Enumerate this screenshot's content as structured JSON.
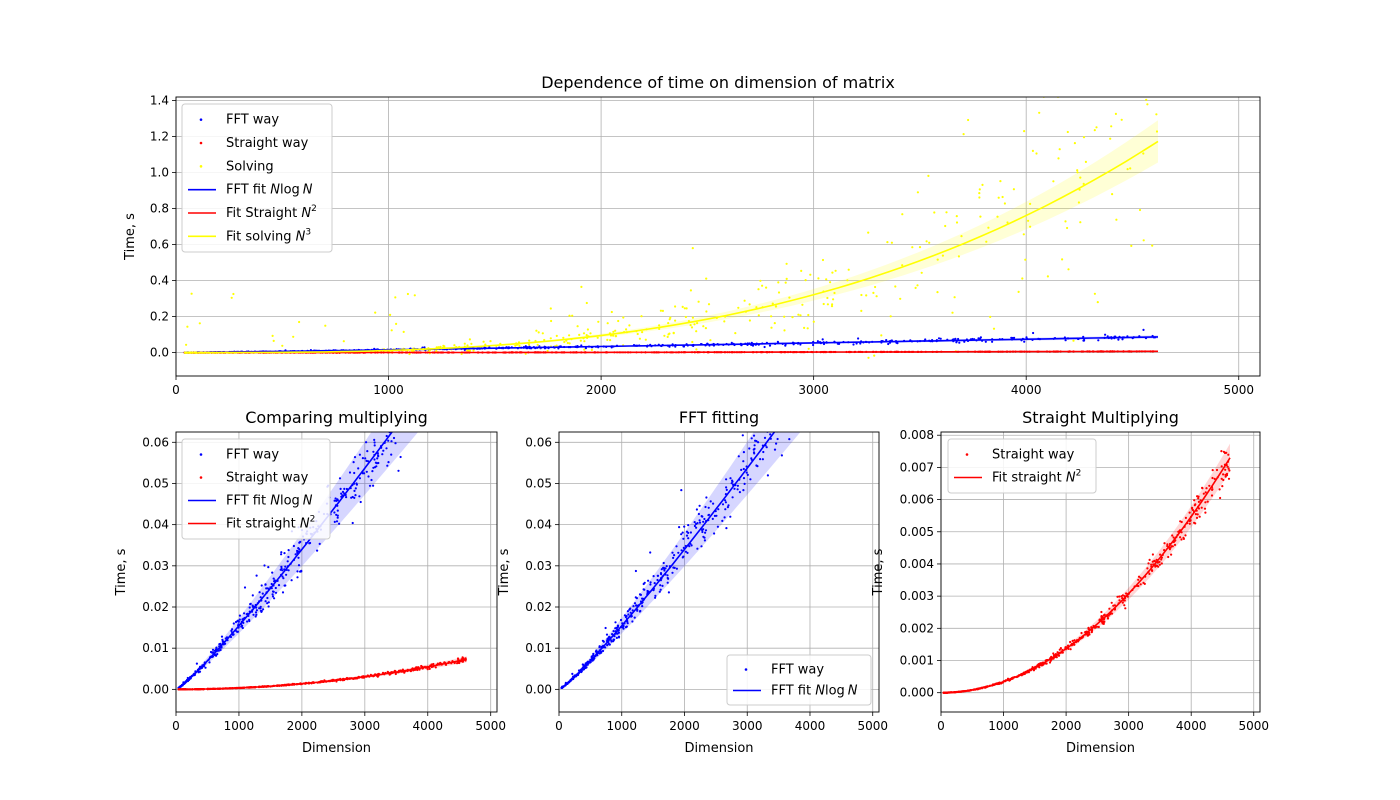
{
  "chart_data": [
    {
      "id": "top",
      "type": "scatter",
      "title": "Dependence of time on dimension of matrix",
      "xlabel": "",
      "ylabel": "Time, s",
      "xlim": [
        0,
        5100
      ],
      "ylim": [
        -0.13,
        1.42
      ],
      "xticks": [
        0,
        1000,
        2000,
        3000,
        4000,
        5000
      ],
      "yticks": [
        0.0,
        0.2,
        0.4,
        0.6,
        0.8,
        1.0,
        1.2,
        1.4
      ],
      "grid": true,
      "legend_placement": "upper-left",
      "series": [
        {
          "name": "FFT way",
          "kind": "scatter",
          "color": "#0000ff",
          "model": "nlogn",
          "coef": 1.55e-06,
          "max": 0.067,
          "noise": 0.09
        },
        {
          "name": "Straight way",
          "kind": "scatter",
          "color": "#ff0000",
          "model": "n2",
          "coef": 3.42e-10,
          "max": 0.0073,
          "noise": 0.05
        },
        {
          "name": "Solving",
          "kind": "scatter",
          "color": "#ffff00",
          "model": "n3",
          "coef": 1.19e-11,
          "max": 1.3,
          "noise": 0.4
        },
        {
          "name": "FFT fit $N\\log N$",
          "kind": "line",
          "color": "#0000ff",
          "model": "nlogn",
          "coef": 1.55e-06,
          "band": 0.1
        },
        {
          "name": "Fit Straight $N^2$",
          "kind": "line",
          "color": "#ff0000",
          "model": "n2",
          "coef": 3.42e-10,
          "band": 0.1
        },
        {
          "name": "Fit solving $N^3$",
          "kind": "line",
          "color": "#ffff00",
          "model": "n3",
          "coef": 1.19e-11,
          "band": 0.1
        }
      ]
    },
    {
      "id": "bl",
      "type": "scatter",
      "title": "Comparing multiplying",
      "xlabel": "Dimension",
      "ylabel": "Time, s",
      "xlim": [
        0,
        5100
      ],
      "ylim": [
        -0.0055,
        0.0625
      ],
      "xticks": [
        0,
        1000,
        2000,
        3000,
        4000,
        5000
      ],
      "yticks": [
        0.0,
        0.01,
        0.02,
        0.03,
        0.04,
        0.05,
        0.06
      ],
      "grid": true,
      "legend_placement": "upper-left",
      "series": [
        {
          "name": "FFT way",
          "kind": "scatter",
          "color": "#0000ff",
          "model": "nlogn",
          "coef": 1.55e-06,
          "noise": 0.07
        },
        {
          "name": "Straight way",
          "kind": "scatter",
          "color": "#ff0000",
          "model": "n2",
          "coef": 3.42e-10,
          "noise": 0.05
        },
        {
          "name": "FFT fit $N\\log N$",
          "kind": "line",
          "color": "#0000ff",
          "model": "nlogn",
          "coef": 1.55e-06,
          "band": 0.12
        },
        {
          "name": "Fit straight $N^2$",
          "kind": "line",
          "color": "#ff0000",
          "model": "n2",
          "coef": 3.42e-10,
          "band": 0.1
        }
      ]
    },
    {
      "id": "bm",
      "type": "scatter",
      "title": "FFT fitting",
      "xlabel": "Dimension",
      "ylabel": "Time, s",
      "xlim": [
        0,
        5100
      ],
      "ylim": [
        -0.0055,
        0.0625
      ],
      "xticks": [
        0,
        1000,
        2000,
        3000,
        4000,
        5000
      ],
      "yticks": [
        0.0,
        0.01,
        0.02,
        0.03,
        0.04,
        0.05,
        0.06
      ],
      "grid": true,
      "legend_placement": "lower-right",
      "series": [
        {
          "name": "FFT way",
          "kind": "scatter",
          "color": "#0000ff",
          "model": "nlogn",
          "coef": 1.55e-06,
          "noise": 0.07
        },
        {
          "name": "FFT fit $N\\log N$",
          "kind": "line",
          "color": "#0000ff",
          "model": "nlogn",
          "coef": 1.55e-06,
          "band": 0.12
        }
      ]
    },
    {
      "id": "br",
      "type": "scatter",
      "title": "Straight Multiplying",
      "xlabel": "Dimension",
      "ylabel": "Time, s",
      "xlim": [
        0,
        5100
      ],
      "ylim": [
        -0.0006,
        0.0081
      ],
      "xticks": [
        0,
        1000,
        2000,
        3000,
        4000,
        5000
      ],
      "yticks": [
        0.0,
        0.001,
        0.002,
        0.003,
        0.004,
        0.005,
        0.006,
        0.007,
        0.008
      ],
      "grid": true,
      "legend_placement": "upper-left",
      "series": [
        {
          "name": "Straight way",
          "kind": "scatter",
          "color": "#ff0000",
          "model": "n2",
          "coef": 3.42e-10,
          "noise": 0.04
        },
        {
          "name": "Fit straight $N^2$",
          "kind": "line",
          "color": "#ff0000",
          "model": "n2",
          "coef": 3.42e-10,
          "band": 0.06
        }
      ]
    }
  ]
}
